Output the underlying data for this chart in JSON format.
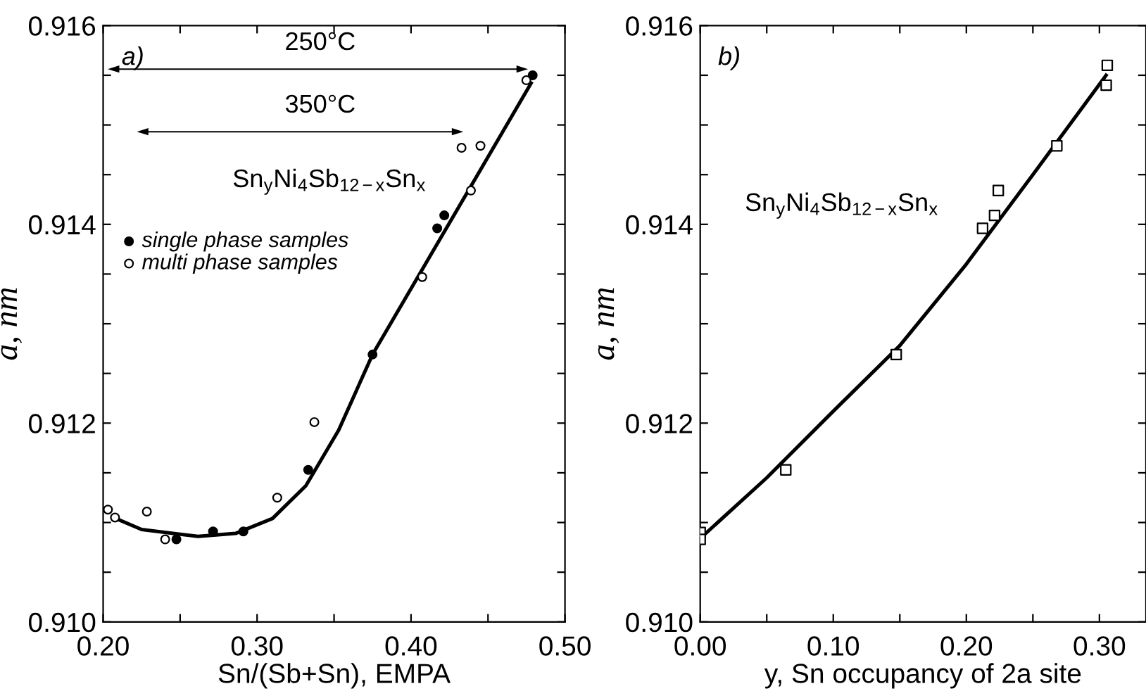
{
  "chart_data": [
    {
      "type": "scatter",
      "xlabel": "Sn/(Sb+Sn), EMPA",
      "ylabel": "a, nm",
      "xlim": [
        0.2,
        0.5
      ],
      "ylim": [
        0.91,
        0.916
      ],
      "xticks": [
        {
          "value": 0.2,
          "label": "0.20"
        },
        {
          "value": 0.25,
          "label": null
        },
        {
          "value": 0.3,
          "label": "0.30"
        },
        {
          "value": 0.35,
          "label": null
        },
        {
          "value": 0.4,
          "label": "0.40"
        },
        {
          "value": 0.45,
          "label": null
        },
        {
          "value": 0.5,
          "label": "0.50"
        }
      ],
      "yticks": [
        {
          "value": 0.91,
          "label": "0.910"
        },
        {
          "value": 0.9105,
          "label": null
        },
        {
          "value": 0.911,
          "label": null
        },
        {
          "value": 0.9115,
          "label": null
        },
        {
          "value": 0.912,
          "label": "0.912"
        },
        {
          "value": 0.9125,
          "label": null
        },
        {
          "value": 0.913,
          "label": null
        },
        {
          "value": 0.9135,
          "label": null
        },
        {
          "value": 0.914,
          "label": "0.914"
        },
        {
          "value": 0.9145,
          "label": null
        },
        {
          "value": 0.915,
          "label": null
        },
        {
          "value": 0.9155,
          "label": null
        },
        {
          "value": 0.916,
          "label": "0.916"
        }
      ],
      "grid": false,
      "legend": "upper left",
      "series": [
        {
          "name": "single phase samples",
          "marker": "circle",
          "color": "#000000",
          "x": [
            0.479,
            0.417,
            0.4216,
            0.375,
            0.3332,
            0.2911,
            0.2714,
            0.2476
          ],
          "values": [
            0.9155,
            0.91396,
            0.91409,
            0.91269,
            0.91153,
            0.91091,
            0.91091,
            0.91083
          ]
        },
        {
          "name": "multi phase samples",
          "marker": "circle",
          "color": "#ffffff",
          "x": [
            0.4749,
            0.4328,
            0.4451,
            0.4389,
            0.4073,
            0.3372,
            0.3131,
            0.2284,
            0.2403,
            0.2031,
            0.2077
          ],
          "values": [
            0.91545,
            0.91477,
            0.91479,
            0.91434,
            0.91347,
            0.91201,
            0.91125,
            0.91111,
            0.91083,
            0.91113,
            0.91105
          ]
        },
        {
          "type": "line",
          "marker": "none",
          "line_style": "solid",
          "color": "#000000",
          "x": [
            0.2083,
            0.225,
            0.2616,
            0.286,
            0.31,
            0.3317,
            0.353,
            0.375,
            0.478
          ],
          "values": [
            0.91104,
            0.91093,
            0.91086,
            0.91089,
            0.91104,
            0.91137,
            0.91193,
            0.91269,
            0.91542
          ]
        }
      ],
      "annotations": [
        {
          "text": "a)"
        },
        {
          "text": "Sn$_{y}$Ni$_{4}$Sb$_{12−x}$Sn$_{x}$"
        },
        "250°C",
        "350°C"
      ]
    },
    {
      "type": "scatter",
      "xlabel": "y, Sn occupancy of 2a site",
      "ylabel": "a, nm",
      "xlim": [
        0.0,
        0.335
      ],
      "ylim": [
        0.91,
        0.916
      ],
      "xticks": [
        {
          "value": 0.0,
          "label": "0.00"
        },
        {
          "value": 0.05,
          "label": null
        },
        {
          "value": 0.1,
          "label": "0.10"
        },
        {
          "value": 0.15,
          "label": null
        },
        {
          "value": 0.2,
          "label": "0.20"
        },
        {
          "value": 0.25,
          "label": null
        },
        {
          "value": 0.3,
          "label": "0.30"
        }
      ],
      "yticks": [
        {
          "value": 0.91,
          "label": "0.910"
        },
        {
          "value": 0.9105,
          "label": null
        },
        {
          "value": 0.911,
          "label": null
        },
        {
          "value": 0.9115,
          "label": null
        },
        {
          "value": 0.912,
          "label": "0.912"
        },
        {
          "value": 0.9125,
          "label": null
        },
        {
          "value": 0.913,
          "label": null
        },
        {
          "value": 0.9135,
          "label": null
        },
        {
          "value": 0.914,
          "label": "0.914"
        },
        {
          "value": 0.9145,
          "label": null
        },
        {
          "value": 0.915,
          "label": null
        },
        {
          "value": 0.9155,
          "label": null
        },
        {
          "value": 0.916,
          "label": "0.916"
        }
      ],
      "grid": false,
      "series": [
        {
          "marker": "square",
          "color": "#ffffff",
          "x": [
            0.3059,
            0.3051,
            0.268,
            0.224,
            0.2212,
            0.2122,
            0.1473,
            0.0643,
            0.0,
            0.0
          ],
          "values": [
            0.9156,
            0.9154,
            0.91479,
            0.91434,
            0.91409,
            0.91396,
            0.91269,
            0.91153,
            0.9109,
            0.91083
          ]
        },
        {
          "type": "line",
          "marker": "none",
          "line_style": "solid",
          "color": "#000000",
          "x": [
            0.0,
            0.05,
            0.1,
            0.15,
            0.2,
            0.25,
            0.305
          ],
          "values": [
            0.91084,
            0.91145,
            0.91212,
            0.91278,
            0.9136,
            0.9145,
            0.9155
          ]
        }
      ],
      "annotations": [
        {
          "text": "b)"
        },
        {
          "text": "Sn$_{y}$Ni$_{4}$Sb$_{12−x}$Sn$_{x}$"
        }
      ]
    }
  ]
}
